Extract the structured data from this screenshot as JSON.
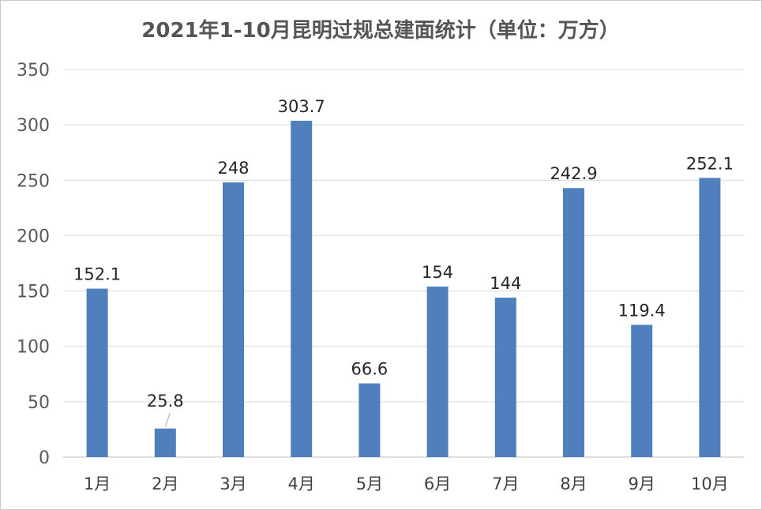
{
  "chart_data": {
    "type": "bar",
    "title": "2021年1-10月昆明过规总建面统计（单位：万方）",
    "categories": [
      "1月",
      "2月",
      "3月",
      "4月",
      "5月",
      "6月",
      "7月",
      "8月",
      "9月",
      "10月"
    ],
    "series": [
      {
        "values": [
          152.1,
          25.8,
          248,
          303.7,
          66.6,
          154,
          144,
          242.9,
          119.4,
          252.1
        ],
        "value_labels": [
          "152.1",
          "25.8",
          "248",
          "303.7",
          "66.6",
          "154",
          "144",
          "242.9",
          "119.4",
          "252.1"
        ]
      }
    ],
    "ylim": [
      0,
      350
    ],
    "yticks": [
      "0",
      "50",
      "100",
      "150",
      "200",
      "250",
      "300",
      "350"
    ],
    "grid": true,
    "legend": "none",
    "colors": {
      "bar": "#4f7fbd",
      "grid": "#d9d9d9",
      "axis": "#bfbfbf"
    }
  }
}
